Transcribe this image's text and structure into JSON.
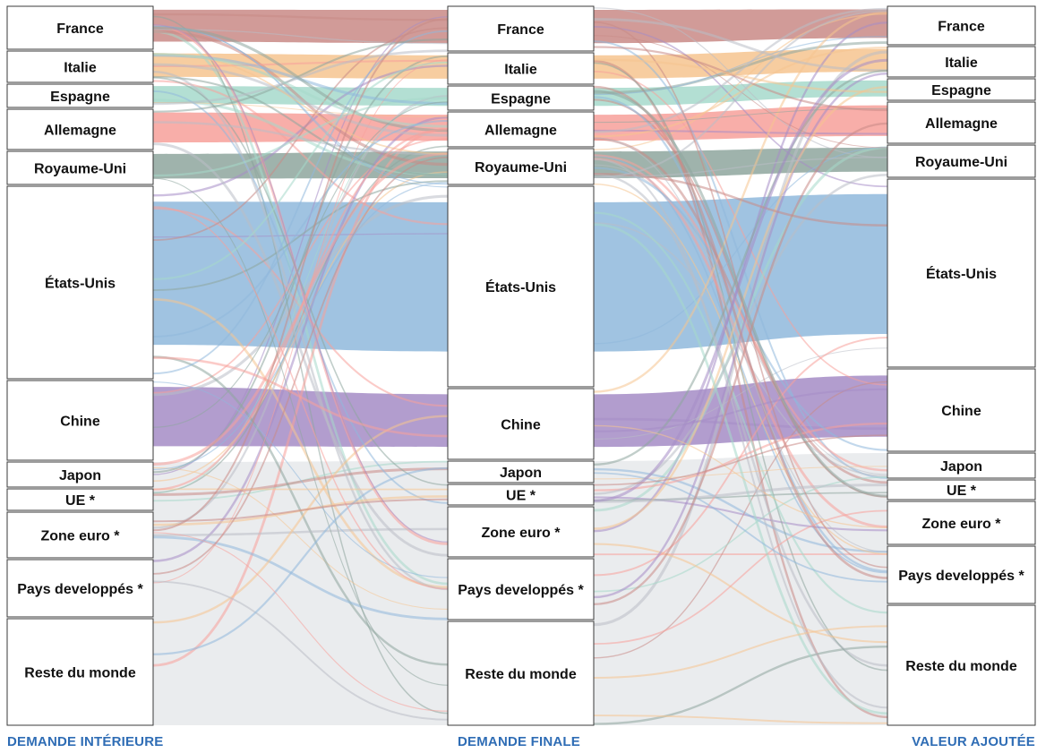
{
  "columns": [
    {
      "title": "DEMANDE INTÉRIEURE",
      "nodes": [
        "France",
        "Italie",
        "Espagne",
        "Allemagne",
        "Royaume-Uni",
        "États-Unis",
        "Chine",
        "Japon",
        "UE *",
        "Zone euro *",
        "Pays developpés *",
        "Reste du monde"
      ]
    },
    {
      "title": "DEMANDE FINALE",
      "nodes": [
        "France",
        "Italie",
        "Espagne",
        "Allemagne",
        "Royaume-Uni",
        "États-Unis",
        "Chine",
        "Japon",
        "UE *",
        "Zone euro *",
        "Pays developpés *",
        "Reste du monde"
      ]
    },
    {
      "title": "VALEUR AJOUTÉE",
      "nodes": [
        "France",
        "Italie",
        "Espagne",
        "Allemagne",
        "Royaume-Uni",
        "États-Unis",
        "Chine",
        "Japon",
        "UE *",
        "Zone euro *",
        "Pays developpés *",
        "Reste du monde"
      ]
    }
  ],
  "colors": {
    "France": "#c98a86",
    "Italie": "#f6c48f",
    "Espagne": "#a6d9cb",
    "Allemagne": "#f7a09a",
    "Royaume-Uni": "#8ea69e",
    "États-Unis": "#8fb8dc",
    "Chine": "#a58cc6",
    "gray": "#e3e5e8",
    "title": "#2f6db5"
  }
}
